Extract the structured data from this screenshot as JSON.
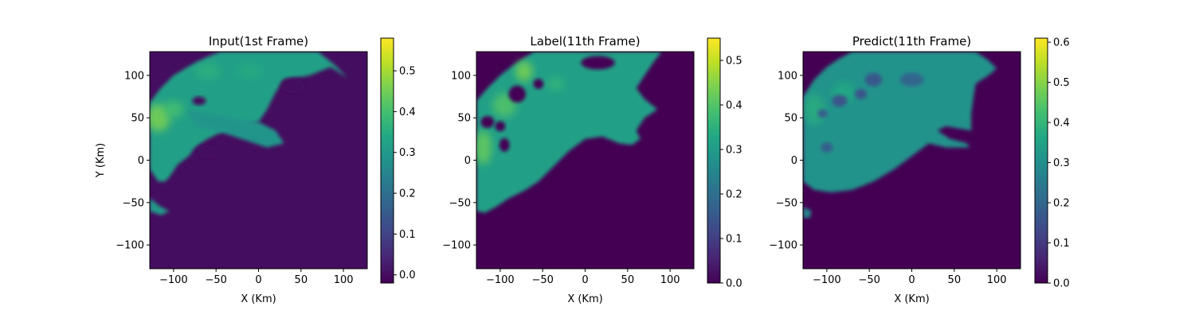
{
  "colormap": "viridis",
  "chart_data": [
    {
      "type": "heatmap",
      "title": "Input(1st Frame)",
      "xlabel": "X (Km)",
      "ylabel": "Y (Km)",
      "xlim": [
        -128,
        128
      ],
      "ylim": [
        -128,
        128
      ],
      "xticks": [
        -100,
        -50,
        0,
        50,
        100
      ],
      "yticks": [
        -100,
        -50,
        0,
        50,
        100
      ],
      "colorbar": {
        "min": -0.02,
        "max": 0.58,
        "ticks": [
          0.0,
          0.1,
          0.2,
          0.3,
          0.4,
          0.5
        ]
      },
      "background_value": 0.0,
      "regions": [
        {
          "points": [
            [
              -128,
              68
            ],
            [
              -115,
              85
            ],
            [
              -100,
              100
            ],
            [
              -80,
              112
            ],
            [
              -60,
              122
            ],
            [
              -45,
              128
            ],
            [
              70,
              128
            ],
            [
              90,
              112
            ],
            [
              105,
              97
            ],
            [
              85,
              110
            ],
            [
              60,
              100
            ],
            [
              30,
              95
            ],
            [
              20,
              80
            ],
            [
              10,
              60
            ],
            [
              0,
              45
            ],
            [
              -20,
              40
            ],
            [
              -40,
              35
            ],
            [
              -60,
              25
            ],
            [
              -75,
              15
            ],
            [
              -82,
              5
            ],
            [
              -95,
              -5
            ],
            [
              -105,
              -20
            ],
            [
              -110,
              -25
            ],
            [
              -118,
              -25
            ],
            [
              -125,
              -15
            ],
            [
              -128,
              -10
            ]
          ],
          "value": 0.32
        },
        {
          "points": [
            [
              -85,
              60
            ],
            [
              -60,
              55
            ],
            [
              -30,
              50
            ],
            [
              0,
              45
            ],
            [
              20,
              35
            ],
            [
              30,
              20
            ],
            [
              10,
              15
            ],
            [
              -20,
              25
            ],
            [
              -50,
              35
            ],
            [
              -75,
              40
            ]
          ],
          "value": 0.29
        },
        {
          "points": [
            [
              -128,
              -45
            ],
            [
              -115,
              -55
            ],
            [
              -105,
              -60
            ],
            [
              -115,
              -65
            ],
            [
              -128,
              -60
            ]
          ],
          "value": 0.3
        }
      ],
      "hotspots": [
        {
          "x": -118,
          "y": 50,
          "rx": 14,
          "ry": 16,
          "value": 0.46
        },
        {
          "x": -100,
          "y": 60,
          "rx": 12,
          "ry": 10,
          "value": 0.4
        },
        {
          "x": -60,
          "y": 105,
          "rx": 15,
          "ry": 9,
          "value": 0.36
        },
        {
          "x": -10,
          "y": 105,
          "rx": 14,
          "ry": 8,
          "value": 0.35
        }
      ],
      "holes": [
        {
          "x": -70,
          "y": 70,
          "rx": 8,
          "ry": 5
        },
        {
          "x": -60,
          "y": 10,
          "rx": 12,
          "ry": 8
        },
        {
          "x": 40,
          "y": 88,
          "rx": 14,
          "ry": 9
        }
      ]
    },
    {
      "type": "heatmap",
      "title": "Label(11th Frame)",
      "xlabel": "X (Km)",
      "ylabel": "",
      "xlim": [
        -128,
        128
      ],
      "ylim": [
        -128,
        128
      ],
      "xticks": [
        -100,
        -50,
        0,
        50,
        100
      ],
      "yticks": [
        -100,
        -50,
        0,
        50,
        100
      ],
      "colorbar": {
        "min": 0.0,
        "max": 0.55,
        "ticks": [
          0.0,
          0.1,
          0.2,
          0.3,
          0.4,
          0.5
        ]
      },
      "background_value": 0.0,
      "regions": [
        {
          "points": [
            [
              -128,
              70
            ],
            [
              -115,
              85
            ],
            [
              -100,
              100
            ],
            [
              -85,
              112
            ],
            [
              -70,
              122
            ],
            [
              -60,
              128
            ],
            [
              90,
              128
            ],
            [
              80,
              115
            ],
            [
              70,
              100
            ],
            [
              60,
              85
            ],
            [
              70,
              72
            ],
            [
              85,
              60
            ],
            [
              70,
              50
            ],
            [
              60,
              35
            ],
            [
              65,
              25
            ],
            [
              55,
              18
            ],
            [
              40,
              20
            ],
            [
              20,
              28
            ],
            [
              0,
              25
            ],
            [
              -20,
              10
            ],
            [
              -40,
              -10
            ],
            [
              -55,
              -25
            ],
            [
              -70,
              -35
            ],
            [
              -90,
              -45
            ],
            [
              -105,
              -55
            ],
            [
              -118,
              -62
            ],
            [
              -128,
              -60
            ]
          ],
          "value": 0.31
        }
      ],
      "hotspots": [
        {
          "x": -120,
          "y": 15,
          "rx": 10,
          "ry": 20,
          "value": 0.42
        },
        {
          "x": -95,
          "y": 65,
          "rx": 14,
          "ry": 14,
          "value": 0.4
        },
        {
          "x": -72,
          "y": 105,
          "rx": 10,
          "ry": 12,
          "value": 0.44
        },
        {
          "x": -35,
          "y": 90,
          "rx": 10,
          "ry": 8,
          "value": 0.36
        }
      ],
      "holes": [
        {
          "x": -115,
          "y": 45,
          "rx": 8,
          "ry": 7
        },
        {
          "x": -100,
          "y": 40,
          "rx": 6,
          "ry": 6
        },
        {
          "x": -95,
          "y": 18,
          "rx": 6,
          "ry": 8
        },
        {
          "x": -80,
          "y": 78,
          "rx": 10,
          "ry": 10
        },
        {
          "x": -55,
          "y": 90,
          "rx": 6,
          "ry": 6
        },
        {
          "x": 15,
          "y": 115,
          "rx": 20,
          "ry": 8
        }
      ]
    },
    {
      "type": "heatmap",
      "title": "Predict(11th Frame)",
      "xlabel": "X (Km)",
      "ylabel": "",
      "xlim": [
        -128,
        128
      ],
      "ylim": [
        -128,
        128
      ],
      "xticks": [
        -100,
        -50,
        0,
        50,
        100
      ],
      "yticks": [
        -100,
        -50,
        0,
        50,
        100
      ],
      "colorbar": {
        "min": 0.0,
        "max": 0.61,
        "ticks": [
          0.0,
          0.1,
          0.2,
          0.3,
          0.4,
          0.5,
          0.6
        ]
      },
      "background_value": 0.0,
      "regions": [
        {
          "points": [
            [
              -128,
              75
            ],
            [
              -115,
              95
            ],
            [
              -100,
              110
            ],
            [
              -85,
              120
            ],
            [
              -70,
              128
            ],
            [
              75,
              128
            ],
            [
              90,
              118
            ],
            [
              100,
              108
            ],
            [
              90,
              100
            ],
            [
              75,
              90
            ],
            [
              72,
              70
            ],
            [
              70,
              55
            ],
            [
              70,
              35
            ],
            [
              40,
              40
            ],
            [
              30,
              35
            ],
            [
              45,
              25
            ],
            [
              65,
              20
            ],
            [
              68,
              15
            ],
            [
              40,
              15
            ],
            [
              20,
              20
            ],
            [
              0,
              5
            ],
            [
              -20,
              -10
            ],
            [
              -45,
              -25
            ],
            [
              -70,
              -35
            ],
            [
              -95,
              -38
            ],
            [
              -115,
              -35
            ],
            [
              -128,
              -25
            ]
          ],
          "value": 0.31
        },
        {
          "points": [
            [
              -128,
              -55
            ],
            [
              -118,
              -60
            ],
            [
              -120,
              -68
            ],
            [
              -128,
              -68
            ]
          ],
          "value": 0.28
        }
      ],
      "hotspots": [
        {
          "x": -115,
          "y": 60,
          "rx": 12,
          "ry": 18,
          "value": 0.38
        },
        {
          "x": -80,
          "y": 80,
          "rx": 14,
          "ry": 12,
          "value": 0.37
        }
      ],
      "holes": [
        {
          "x": -85,
          "y": 70,
          "rx": 9,
          "ry": 7,
          "value": 0.16
        },
        {
          "x": -60,
          "y": 78,
          "rx": 7,
          "ry": 6,
          "value": 0.16
        },
        {
          "x": -45,
          "y": 95,
          "rx": 10,
          "ry": 8,
          "value": 0.17
        },
        {
          "x": -105,
          "y": 55,
          "rx": 6,
          "ry": 5,
          "value": 0.18
        },
        {
          "x": -100,
          "y": 15,
          "rx": 7,
          "ry": 6,
          "value": 0.18
        },
        {
          "x": 0,
          "y": 95,
          "rx": 14,
          "ry": 8,
          "value": 0.2
        }
      ]
    }
  ]
}
